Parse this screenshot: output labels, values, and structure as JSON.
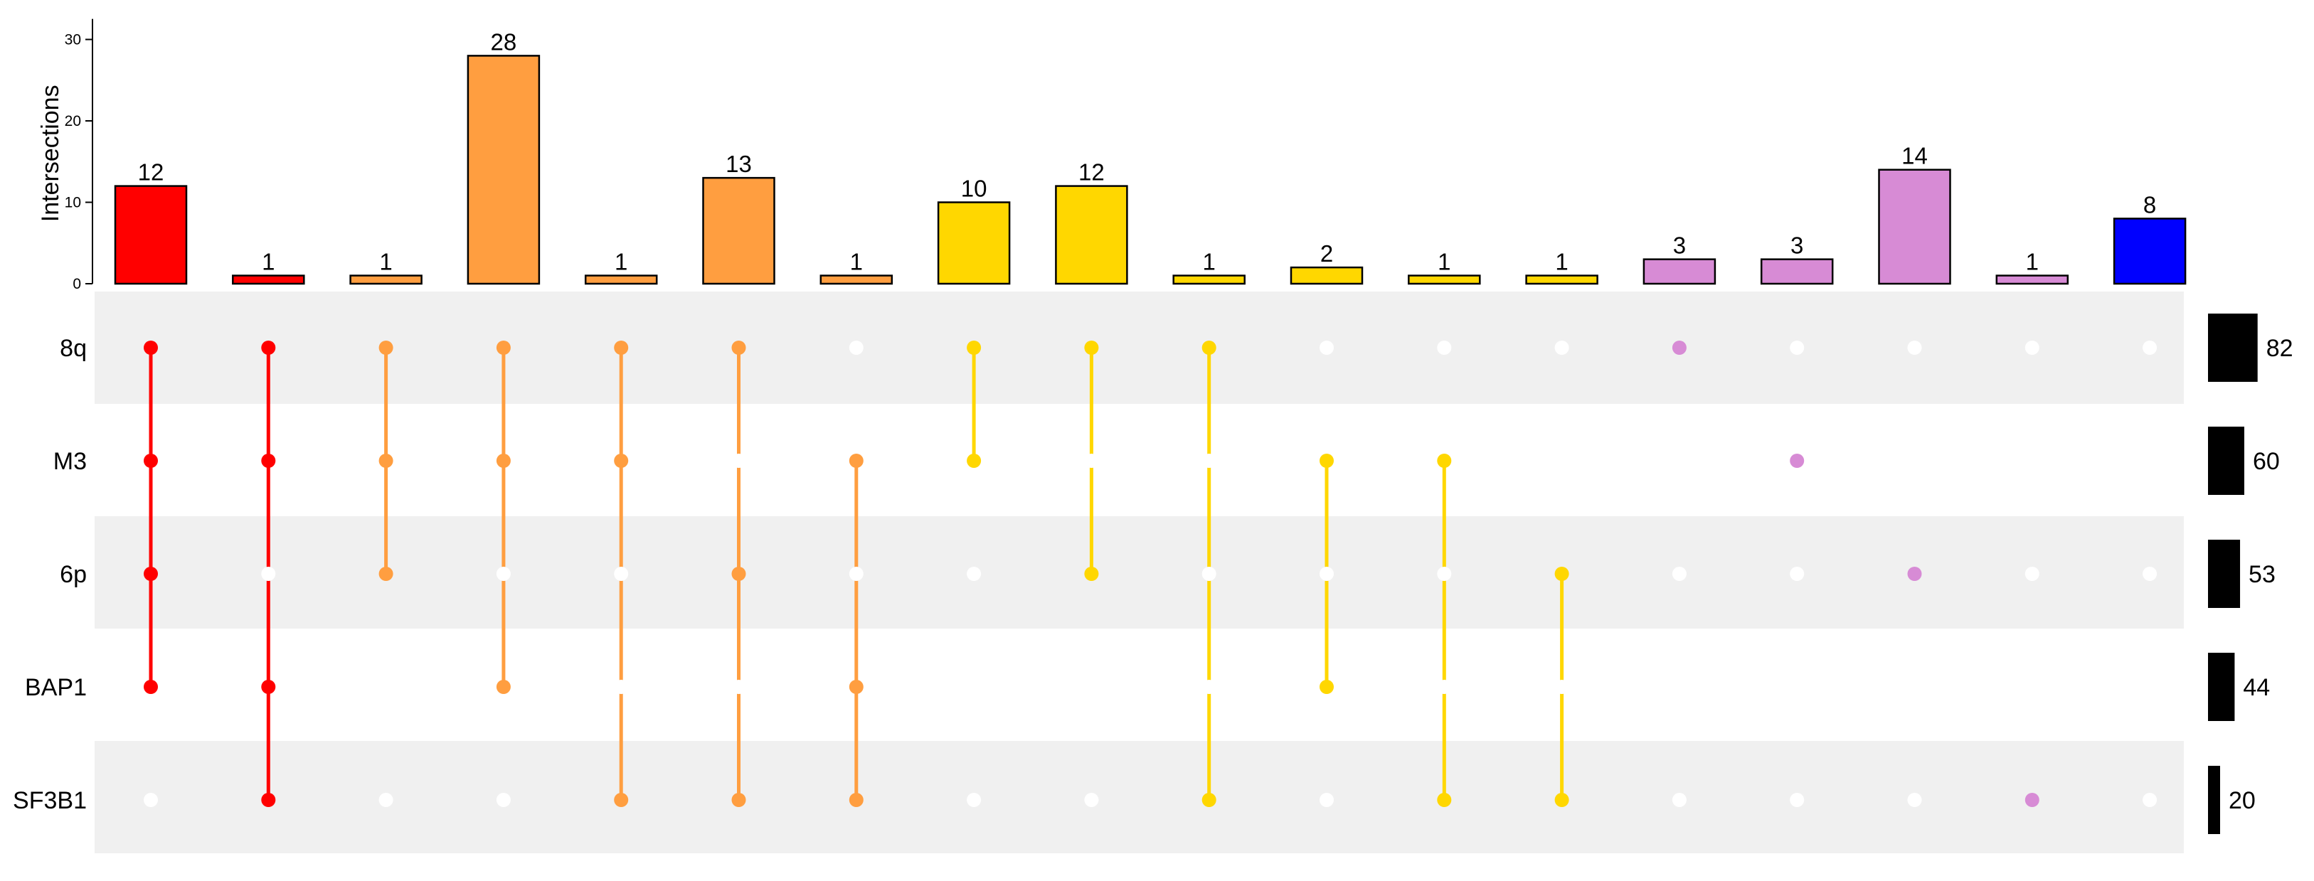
{
  "chart_data": {
    "type": "upset",
    "ylabel": "Intersections",
    "ylim": [
      0,
      32
    ],
    "yticks": [
      0,
      10,
      20,
      30
    ],
    "sets": [
      {
        "name": "8q",
        "size": 82
      },
      {
        "name": "M3",
        "size": 60
      },
      {
        "name": "6p",
        "size": 53
      },
      {
        "name": "BAP1",
        "size": 44
      },
      {
        "name": "SF3B1",
        "size": 20
      }
    ],
    "intersections": [
      {
        "value": 12,
        "color": "#FF0000",
        "members": [
          "8q",
          "M3",
          "6p",
          "BAP1"
        ]
      },
      {
        "value": 1,
        "color": "#FF0000",
        "members": [
          "8q",
          "M3",
          "BAP1",
          "SF3B1"
        ]
      },
      {
        "value": 1,
        "color": "#FF9E40",
        "members": [
          "8q",
          "M3",
          "6p"
        ]
      },
      {
        "value": 28,
        "color": "#FF9E40",
        "members": [
          "8q",
          "M3",
          "BAP1"
        ]
      },
      {
        "value": 1,
        "color": "#FF9E40",
        "members": [
          "8q",
          "M3",
          "SF3B1"
        ]
      },
      {
        "value": 13,
        "color": "#FF9E40",
        "members": [
          "8q",
          "6p",
          "SF3B1"
        ]
      },
      {
        "value": 1,
        "color": "#FF9E40",
        "members": [
          "M3",
          "BAP1",
          "SF3B1"
        ]
      },
      {
        "value": 10,
        "color": "#FFD700",
        "members": [
          "8q",
          "M3"
        ]
      },
      {
        "value": 12,
        "color": "#FFD700",
        "members": [
          "8q",
          "6p"
        ]
      },
      {
        "value": 1,
        "color": "#FFD700",
        "members": [
          "8q",
          "SF3B1"
        ]
      },
      {
        "value": 2,
        "color": "#FFD700",
        "members": [
          "M3",
          "BAP1"
        ]
      },
      {
        "value": 1,
        "color": "#FFD700",
        "members": [
          "M3",
          "SF3B1"
        ]
      },
      {
        "value": 1,
        "color": "#FFD700",
        "members": [
          "6p",
          "SF3B1"
        ]
      },
      {
        "value": 3,
        "color": "#D78BD5",
        "members": [
          "8q"
        ]
      },
      {
        "value": 3,
        "color": "#D78BD5",
        "members": [
          "M3"
        ]
      },
      {
        "value": 14,
        "color": "#D78BD5",
        "members": [
          "6p"
        ]
      },
      {
        "value": 1,
        "color": "#D78BD5",
        "members": [
          "SF3B1"
        ]
      },
      {
        "value": 8,
        "color": "#0000FF",
        "members": []
      }
    ],
    "colors": {
      "stripe": "#F0F0F0",
      "empty_dot": "#FFFFFF",
      "set_size_bar": "#000000"
    }
  }
}
